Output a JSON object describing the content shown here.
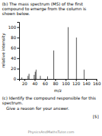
{
  "chart_data": {
    "type": "bar",
    "title": "(b)  The mass spectrum (MS) of the first compound to emerge from the column is shown below.",
    "xlabel": "m/z",
    "ylabel": "relative intensity",
    "x": [
      15,
      27,
      29,
      39,
      41,
      43,
      51,
      65,
      77,
      105,
      121,
      136
    ],
    "values": [
      3,
      6,
      10,
      8,
      14,
      18,
      6,
      5,
      55,
      100,
      80,
      18
    ],
    "color": "#444444",
    "xlim": [
      10,
      160
    ],
    "ylim": [
      0,
      110
    ],
    "xticks": [
      20,
      40,
      60,
      80,
      100,
      120,
      140,
      160
    ],
    "yticks": [
      0,
      20,
      40,
      60,
      80,
      100
    ],
    "grid": false,
    "annotations": [
      "(c)  Identify the compound responsible for this spectrum.",
      "Give a reason for your answer.",
      "[5]",
      "PhysicsAndMathsTutor.com"
    ]
  }
}
